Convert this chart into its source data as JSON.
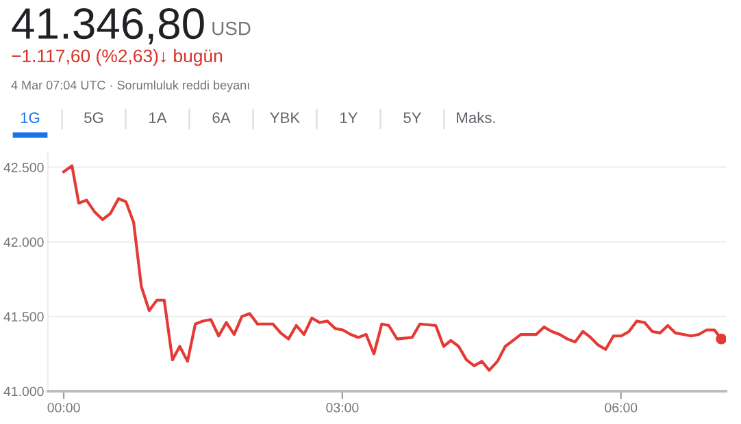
{
  "chart_data": {
    "type": "line",
    "title": "41.346,80",
    "subtitle": "−1.117,60 (%2,63)↓ bugün",
    "annotations": [
      "USD",
      "4 Mar 07:04 UTC · Sorumluluk reddi beyanı",
      "1G",
      "5G",
      "1A",
      "6A",
      "YBK",
      "1Y",
      "5Y",
      "Maks."
    ],
    "series": [
      {
        "color": "#e53935",
        "marker": "none",
        "x": [
          0,
          0.089,
          0.162,
          0.246,
          0.334,
          0.418,
          0.502,
          0.59,
          0.669,
          0.753,
          0.836,
          0.92,
          1.003,
          1.082,
          1.171,
          1.249,
          1.333,
          1.417,
          1.5,
          1.584,
          1.668,
          1.751,
          1.835,
          1.918,
          2.002,
          2.086,
          2.253,
          2.336,
          2.42,
          2.504,
          2.587,
          2.671,
          2.755,
          2.838,
          2.922,
          3.005,
          3.089,
          3.173,
          3.256,
          3.34,
          3.424,
          3.5,
          3.589,
          3.751,
          3.835,
          4.006,
          4.09,
          4.168,
          4.252,
          4.336,
          4.419,
          4.503,
          4.581,
          4.67,
          4.754,
          4.838,
          4.921,
          5.088,
          5.171,
          5.255,
          5.339,
          5.422,
          5.506,
          5.59,
          5.673,
          5.752,
          5.835,
          5.919,
          6.003,
          6.086,
          6.17,
          6.254,
          6.336,
          6.42,
          6.504,
          6.587,
          6.671,
          6.755,
          6.838,
          6.922,
          7.006,
          7.08
        ],
        "values": [
          42470,
          42510,
          42260,
          42280,
          42200,
          42150,
          42190,
          42290,
          42270,
          42130,
          41700,
          41540,
          41610,
          41610,
          41210,
          41300,
          41200,
          41450,
          41470,
          41480,
          41370,
          41460,
          41380,
          41500,
          41520,
          41450,
          41450,
          41390,
          41350,
          41440,
          41380,
          41490,
          41460,
          41470,
          41420,
          41410,
          41380,
          41360,
          41380,
          41250,
          41450,
          41440,
          41350,
          41360,
          41450,
          41440,
          41300,
          41340,
          41300,
          41210,
          41170,
          41200,
          41140,
          41200,
          41300,
          41340,
          41380,
          41380,
          41430,
          41400,
          41380,
          41350,
          41330,
          41400,
          41360,
          41310,
          41280,
          41370,
          41370,
          41400,
          41470,
          41460,
          41400,
          41390,
          41440,
          41390,
          41380,
          41370,
          41380,
          41410,
          41410,
          41350
        ]
      },
      {
        "type": "scatter",
        "color": "#e53935",
        "marker": "circle",
        "x": [
          7.08
        ],
        "values": [
          41350
        ]
      }
    ],
    "xlim": [
      -0.17,
      7.13
    ],
    "xticks": [
      {
        "value": 0,
        "label": "00:00"
      },
      {
        "value": 3,
        "label": "03:00"
      },
      {
        "value": 6,
        "label": "06:00"
      }
    ],
    "ylim": [
      41000,
      42600
    ],
    "yticks": [
      {
        "value": 41000,
        "label": "41.000"
      },
      {
        "value": 41500,
        "label": "41.500"
      },
      {
        "value": 42000,
        "label": "42.000"
      },
      {
        "value": 42500,
        "label": "42.500"
      }
    ],
    "grid": "y",
    "legend": false,
    "line_style": "solid"
  }
}
